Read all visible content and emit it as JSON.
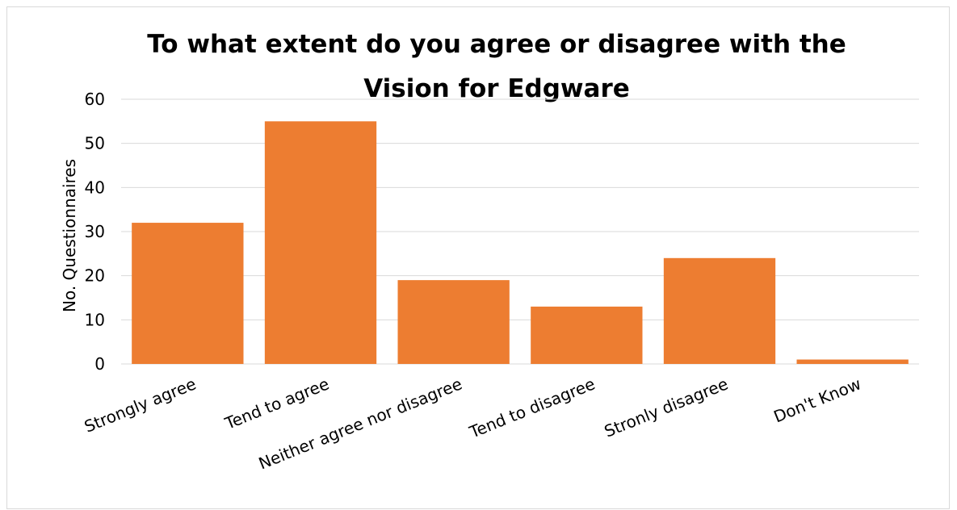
{
  "chart_data": {
    "type": "bar",
    "title_lines": [
      "To what extent do you agree or disagree with the",
      "Vision for Edgware"
    ],
    "xlabel": "",
    "ylabel": "No. Questionnaires",
    "ylim": [
      0,
      60
    ],
    "yticks": [
      0,
      10,
      20,
      30,
      40,
      50,
      60
    ],
    "grid": true,
    "legend": "none",
    "categories": [
      "Strongly agree",
      "Tend to agree",
      "Neither agree nor disagree",
      "Tend to disagree",
      "Stronly disagree",
      "Don't Know"
    ],
    "values": [
      32,
      55,
      19,
      13,
      24,
      1
    ],
    "bar_color": "#ed7d31",
    "grid_color": "#d9d9d9"
  }
}
